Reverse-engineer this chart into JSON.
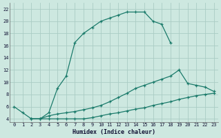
{
  "xlabel": "Humidex (Indice chaleur)",
  "bg_color": "#cde8e0",
  "grid_color": "#aaccC4",
  "line_color": "#1a7a6a",
  "xlim": [
    -0.5,
    23.5
  ],
  "ylim": [
    3.5,
    23
  ],
  "xticks": [
    0,
    1,
    2,
    3,
    4,
    5,
    6,
    7,
    8,
    9,
    10,
    11,
    12,
    13,
    14,
    15,
    16,
    17,
    18,
    19,
    20,
    21,
    22,
    23
  ],
  "yticks": [
    4,
    6,
    8,
    10,
    12,
    14,
    16,
    18,
    20,
    22
  ],
  "curve1_x": [
    0,
    1,
    2,
    3,
    4,
    5,
    6,
    7,
    8,
    9,
    10,
    11,
    12,
    13,
    14,
    15,
    16,
    17,
    18
  ],
  "curve1_y": [
    6,
    5,
    4,
    4,
    5,
    9,
    11,
    16.5,
    18,
    19,
    20,
    20.5,
    21,
    21.5,
    21.5,
    21.5,
    20,
    19.5,
    16.5
  ],
  "curve2_x": [
    2,
    3,
    4,
    5,
    6,
    7,
    8,
    9,
    10,
    11,
    12,
    13,
    14,
    15,
    16,
    17,
    18,
    19,
    20,
    21,
    22,
    23
  ],
  "curve2_y": [
    4,
    4,
    4.5,
    4.8,
    5,
    5.2,
    5.5,
    5.8,
    6.2,
    6.8,
    7.5,
    8.2,
    9,
    9.5,
    10,
    10.5,
    11,
    12,
    9.8,
    9.5,
    9.2,
    8.5
  ],
  "curve3_x": [
    2,
    3,
    4,
    5,
    6,
    7,
    8,
    9,
    10,
    11,
    12,
    13,
    14,
    15,
    16,
    17,
    18,
    19,
    20,
    21,
    22,
    23
  ],
  "curve3_y": [
    4,
    4,
    4,
    4,
    4,
    4,
    4,
    4.2,
    4.5,
    4.8,
    5.0,
    5.3,
    5.6,
    5.8,
    6.2,
    6.5,
    6.8,
    7.2,
    7.5,
    7.8,
    8.0,
    8.2
  ]
}
